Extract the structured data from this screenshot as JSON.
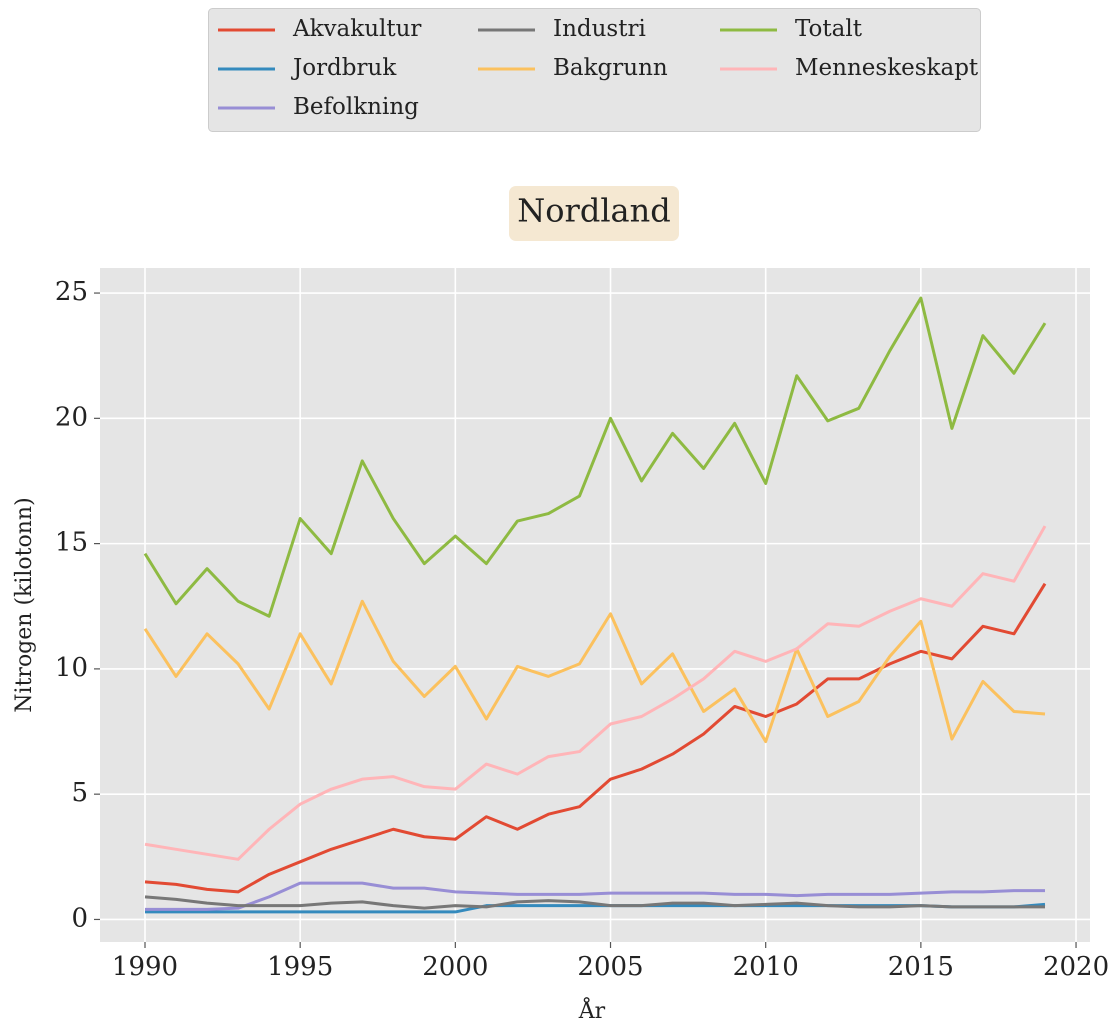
{
  "chart_data": {
    "type": "line",
    "title": "Nordland",
    "xlabel": "År",
    "ylabel": "Nitrogen (kilotonn)",
    "x": [
      1990,
      1991,
      1992,
      1993,
      1994,
      1995,
      1996,
      1997,
      1998,
      1999,
      2000,
      2001,
      2002,
      2003,
      2004,
      2005,
      2006,
      2007,
      2008,
      2009,
      2010,
      2011,
      2012,
      2013,
      2014,
      2015,
      2016,
      2017,
      2018,
      2019
    ],
    "series": [
      {
        "name": "Akvakultur",
        "color": "#E24A33",
        "values": [
          1.5,
          1.4,
          1.2,
          1.1,
          1.8,
          2.3,
          2.8,
          3.2,
          3.6,
          3.3,
          3.2,
          4.1,
          3.6,
          4.2,
          4.5,
          5.6,
          6.0,
          6.6,
          7.4,
          8.5,
          8.1,
          8.6,
          9.6,
          9.6,
          10.2,
          10.7,
          10.4,
          11.7,
          11.4,
          13.4
        ]
      },
      {
        "name": "Jordbruk",
        "color": "#348ABD",
        "values": [
          0.3,
          0.3,
          0.3,
          0.3,
          0.3,
          0.3,
          0.3,
          0.3,
          0.3,
          0.3,
          0.3,
          0.55,
          0.55,
          0.55,
          0.55,
          0.55,
          0.55,
          0.55,
          0.55,
          0.55,
          0.55,
          0.55,
          0.55,
          0.55,
          0.55,
          0.55,
          0.5,
          0.5,
          0.5,
          0.6
        ]
      },
      {
        "name": "Befolkning",
        "color": "#988ED5",
        "values": [
          0.4,
          0.4,
          0.4,
          0.45,
          0.9,
          1.45,
          1.45,
          1.45,
          1.25,
          1.25,
          1.1,
          1.05,
          1.0,
          1.0,
          1.0,
          1.05,
          1.05,
          1.05,
          1.05,
          1.0,
          1.0,
          0.95,
          1.0,
          1.0,
          1.0,
          1.05,
          1.1,
          1.1,
          1.15,
          1.15
        ]
      },
      {
        "name": "Industri",
        "color": "#777777",
        "values": [
          0.9,
          0.8,
          0.65,
          0.55,
          0.55,
          0.55,
          0.65,
          0.7,
          0.55,
          0.45,
          0.55,
          0.5,
          0.7,
          0.75,
          0.7,
          0.55,
          0.55,
          0.65,
          0.65,
          0.55,
          0.6,
          0.65,
          0.55,
          0.5,
          0.5,
          0.55,
          0.5,
          0.5,
          0.5,
          0.5
        ]
      },
      {
        "name": "Bakgrunn",
        "color": "#FBC15E",
        "values": [
          11.6,
          9.7,
          11.4,
          10.2,
          8.4,
          11.4,
          9.4,
          12.7,
          10.3,
          8.9,
          10.1,
          8.0,
          10.1,
          9.7,
          10.2,
          12.2,
          9.4,
          10.6,
          8.3,
          9.2,
          7.1,
          10.8,
          8.1,
          8.7,
          10.5,
          11.9,
          7.2,
          9.5,
          8.3,
          8.2
        ]
      },
      {
        "name": "Totalt",
        "color": "#8EBA42",
        "values": [
          14.6,
          12.6,
          14.0,
          12.7,
          12.1,
          16.0,
          14.6,
          18.3,
          16.0,
          14.2,
          15.3,
          14.2,
          15.9,
          16.2,
          16.9,
          20.0,
          17.5,
          19.4,
          18.0,
          19.8,
          17.4,
          21.7,
          19.9,
          20.4,
          22.7,
          24.8,
          19.6,
          23.3,
          21.8,
          23.8
        ]
      },
      {
        "name": "Menneskeskapt",
        "color": "#FFB5B8",
        "values": [
          3.0,
          2.8,
          2.6,
          2.4,
          3.6,
          4.6,
          5.2,
          5.6,
          5.7,
          5.3,
          5.2,
          6.2,
          5.8,
          6.5,
          6.7,
          7.8,
          8.1,
          8.8,
          9.6,
          10.7,
          10.3,
          10.8,
          11.8,
          11.7,
          12.3,
          12.8,
          12.5,
          13.8,
          13.5,
          15.7
        ]
      }
    ],
    "xlim": [
      1988.55,
      2020.45
    ],
    "xticks": [
      1990,
      1995,
      2000,
      2005,
      2010,
      2015,
      2020
    ],
    "ylim": [
      -0.9,
      26.0
    ],
    "yticks": [
      0,
      5,
      10,
      15,
      20,
      25
    ],
    "grid": true,
    "legend": "top"
  }
}
